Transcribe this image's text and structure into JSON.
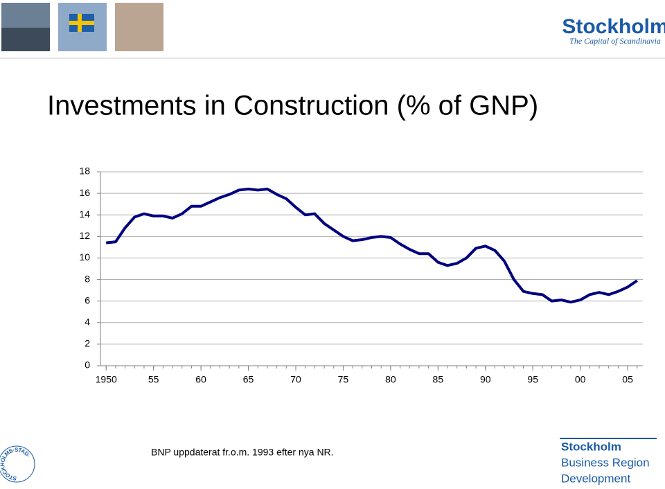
{
  "logos": {
    "city": "Stockholm",
    "tagline": "The Capital of Scandinavia",
    "seal": "STOCKHOLMS·STAD·",
    "region": [
      "Stockholm",
      "Business Region",
      "Development"
    ]
  },
  "chart_data": {
    "type": "line",
    "title": "Investments in Construction (% of GNP)",
    "annotations": [
      "BNP uppdaterat fr.o.m. 1993 efter nya NR."
    ],
    "x": [
      1950,
      1951,
      1952,
      1953,
      1954,
      1955,
      1956,
      1957,
      1958,
      1959,
      1960,
      1961,
      1962,
      1963,
      1964,
      1965,
      1966,
      1967,
      1968,
      1969,
      1970,
      1971,
      1972,
      1973,
      1974,
      1975,
      1976,
      1977,
      1978,
      1979,
      1980,
      1981,
      1982,
      1983,
      1984,
      1985,
      1986,
      1987,
      1988,
      1989,
      1990,
      1991,
      1992,
      1993,
      1994,
      1995,
      1996,
      1997,
      1998,
      1999,
      2000,
      2001,
      2002,
      2003,
      2004,
      2005,
      2006
    ],
    "series": [
      {
        "name": "Investments in construction",
        "color": "#000080",
        "values": [
          11.4,
          11.5,
          12.8,
          13.8,
          14.1,
          13.9,
          13.9,
          13.7,
          14.1,
          14.8,
          14.8,
          15.2,
          15.6,
          15.9,
          16.3,
          16.4,
          16.3,
          16.4,
          15.9,
          15.5,
          14.7,
          14.0,
          14.1,
          13.2,
          12.6,
          12.0,
          11.6,
          11.7,
          11.9,
          12.0,
          11.9,
          11.3,
          10.8,
          10.4,
          10.4,
          9.6,
          9.3,
          9.5,
          10.0,
          10.9,
          11.1,
          10.7,
          9.7,
          8.0,
          6.9,
          6.7,
          6.6,
          6.0,
          6.1,
          5.9,
          6.1,
          6.6,
          6.8,
          6.6,
          6.9,
          7.3,
          7.9
        ]
      }
    ],
    "xlim": [
      1949.4,
      2006.6
    ],
    "xticks": [
      1950,
      {
        "value": 1955,
        "label": "55"
      },
      {
        "value": 1960,
        "label": "60"
      },
      {
        "value": 1965,
        "label": "65"
      },
      {
        "value": 1970,
        "label": "70"
      },
      {
        "value": 1975,
        "label": "75"
      },
      {
        "value": 1980,
        "label": "80"
      },
      {
        "value": 1985,
        "label": "85"
      },
      {
        "value": 1990,
        "label": "90"
      },
      {
        "value": 1995,
        "label": "95"
      },
      {
        "value": 2000,
        "label": "00"
      },
      {
        "value": 2005,
        "label": "05"
      }
    ],
    "ylim": [
      0,
      18
    ],
    "yticks": [
      0,
      2,
      4,
      6,
      8,
      10,
      12,
      14,
      16,
      18
    ],
    "grid": true
  }
}
